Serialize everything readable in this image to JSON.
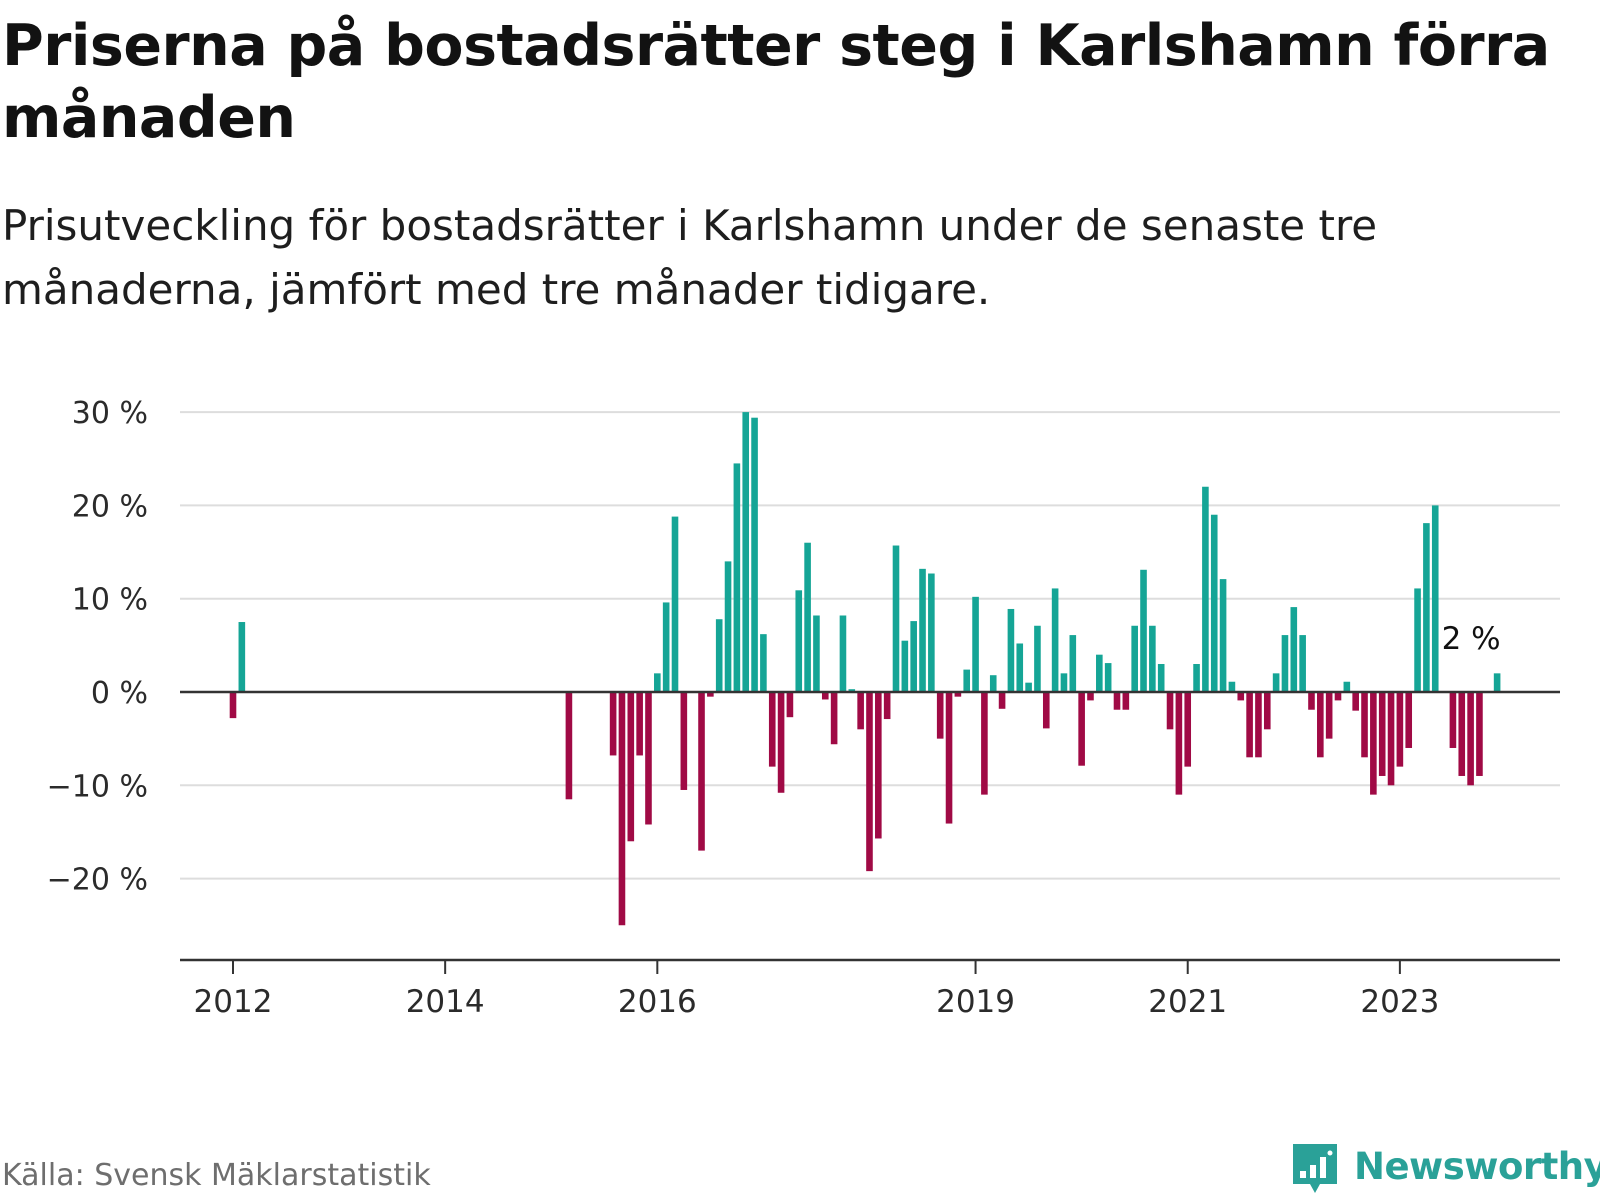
{
  "header": {
    "title": "Priserna på bostadsrätter steg i Karlshamn förra månaden",
    "subtitle": "Prisutveckling för bostadsrätter i Karlshamn under de senaste tre månaderna, jämfört med tre månader tidigare."
  },
  "footer": {
    "source": "Källa: Svensk Mäklarstatistik",
    "brand": "Newsworthy",
    "brand_icon": "bar-chart-bubble-icon"
  },
  "colors": {
    "positive": "#15a596",
    "negative": "#a00a45",
    "grid": "#dddddd",
    "axis": "#333333",
    "brand": "#2aa198"
  },
  "chart_data": {
    "type": "bar",
    "title": "Priserna på bostadsrätter steg i Karlshamn förra månaden",
    "subtitle": "Prisutveckling för bostadsrätter i Karlshamn under de senaste tre månaderna, jämfört med tre månader tidigare.",
    "xlabel": "",
    "ylabel": "",
    "ylim": [
      -28,
      30
    ],
    "yticks": [
      30,
      20,
      10,
      0,
      -10,
      -20
    ],
    "ytick_labels": [
      "30 %",
      "20 %",
      "10 %",
      "0 %",
      "−10 %",
      "−20 %"
    ],
    "xticks": [
      "2012",
      "2014",
      "2016",
      "2019",
      "2021",
      "2023"
    ],
    "grid": true,
    "annotation": {
      "text": "2 %",
      "date": "2023-12"
    },
    "series": [
      {
        "values": [
          {
            "date": "2012-01",
            "value": -2.8
          },
          {
            "date": "2012-02",
            "value": 7.5
          },
          {
            "date": "2015-03",
            "value": -11.5
          },
          {
            "date": "2015-08",
            "value": -6.8
          },
          {
            "date": "2015-09",
            "value": -25.0
          },
          {
            "date": "2015-10",
            "value": -16.0
          },
          {
            "date": "2015-11",
            "value": -6.8
          },
          {
            "date": "2015-12",
            "value": -14.2
          },
          {
            "date": "2016-01",
            "value": 2.0
          },
          {
            "date": "2016-02",
            "value": 9.6
          },
          {
            "date": "2016-03",
            "value": 18.8
          },
          {
            "date": "2016-04",
            "value": -10.5
          },
          {
            "date": "2016-06",
            "value": -17.0
          },
          {
            "date": "2016-07",
            "value": -0.5
          },
          {
            "date": "2016-08",
            "value": 7.8
          },
          {
            "date": "2016-09",
            "value": 14.0
          },
          {
            "date": "2016-10",
            "value": 24.5
          },
          {
            "date": "2016-11",
            "value": 30.0
          },
          {
            "date": "2016-12",
            "value": 29.4
          },
          {
            "date": "2017-01",
            "value": 6.2
          },
          {
            "date": "2017-02",
            "value": -8.0
          },
          {
            "date": "2017-03",
            "value": -10.8
          },
          {
            "date": "2017-04",
            "value": -2.7
          },
          {
            "date": "2017-05",
            "value": 10.9
          },
          {
            "date": "2017-06",
            "value": 16.0
          },
          {
            "date": "2017-07",
            "value": 8.2
          },
          {
            "date": "2017-08",
            "value": -0.8
          },
          {
            "date": "2017-09",
            "value": -5.6
          },
          {
            "date": "2017-10",
            "value": 8.2
          },
          {
            "date": "2017-11",
            "value": 0.3
          },
          {
            "date": "2017-12",
            "value": -4.0
          },
          {
            "date": "2018-01",
            "value": -19.2
          },
          {
            "date": "2018-02",
            "value": -15.7
          },
          {
            "date": "2018-03",
            "value": -2.9
          },
          {
            "date": "2018-04",
            "value": 15.7
          },
          {
            "date": "2018-05",
            "value": 5.5
          },
          {
            "date": "2018-06",
            "value": 7.6
          },
          {
            "date": "2018-07",
            "value": 13.2
          },
          {
            "date": "2018-08",
            "value": 12.7
          },
          {
            "date": "2018-09",
            "value": -5.0
          },
          {
            "date": "2018-10",
            "value": -14.1
          },
          {
            "date": "2018-11",
            "value": -0.5
          },
          {
            "date": "2018-12",
            "value": 2.4
          },
          {
            "date": "2019-01",
            "value": 10.2
          },
          {
            "date": "2019-02",
            "value": -11.0
          },
          {
            "date": "2019-03",
            "value": 1.8
          },
          {
            "date": "2019-04",
            "value": -1.8
          },
          {
            "date": "2019-05",
            "value": 8.9
          },
          {
            "date": "2019-06",
            "value": 5.2
          },
          {
            "date": "2019-07",
            "value": 1.0
          },
          {
            "date": "2019-08",
            "value": 7.1
          },
          {
            "date": "2019-09",
            "value": -3.9
          },
          {
            "date": "2019-10",
            "value": 11.1
          },
          {
            "date": "2019-11",
            "value": 2.0
          },
          {
            "date": "2019-12",
            "value": 6.1
          },
          {
            "date": "2020-01",
            "value": -7.9
          },
          {
            "date": "2020-02",
            "value": -0.9
          },
          {
            "date": "2020-03",
            "value": 4.0
          },
          {
            "date": "2020-04",
            "value": 3.1
          },
          {
            "date": "2020-05",
            "value": -1.9
          },
          {
            "date": "2020-06",
            "value": -1.9
          },
          {
            "date": "2020-07",
            "value": 7.1
          },
          {
            "date": "2020-08",
            "value": 13.1
          },
          {
            "date": "2020-09",
            "value": 7.1
          },
          {
            "date": "2020-10",
            "value": 3.0
          },
          {
            "date": "2020-11",
            "value": -4.0
          },
          {
            "date": "2020-12",
            "value": -11.0
          },
          {
            "date": "2021-01",
            "value": -8.0
          },
          {
            "date": "2021-02",
            "value": 3.0
          },
          {
            "date": "2021-03",
            "value": 22.0
          },
          {
            "date": "2021-04",
            "value": 19.0
          },
          {
            "date": "2021-05",
            "value": 12.1
          },
          {
            "date": "2021-06",
            "value": 1.1
          },
          {
            "date": "2021-07",
            "value": -0.9
          },
          {
            "date": "2021-08",
            "value": -7.0
          },
          {
            "date": "2021-09",
            "value": -7.0
          },
          {
            "date": "2021-10",
            "value": -4.0
          },
          {
            "date": "2021-11",
            "value": 2.0
          },
          {
            "date": "2021-12",
            "value": 6.1
          },
          {
            "date": "2022-01",
            "value": 9.1
          },
          {
            "date": "2022-02",
            "value": 6.1
          },
          {
            "date": "2022-03",
            "value": -1.9
          },
          {
            "date": "2022-04",
            "value": -7.0
          },
          {
            "date": "2022-05",
            "value": -5.0
          },
          {
            "date": "2022-06",
            "value": -0.9
          },
          {
            "date": "2022-07",
            "value": 1.1
          },
          {
            "date": "2022-08",
            "value": -2.0
          },
          {
            "date": "2022-09",
            "value": -7.0
          },
          {
            "date": "2022-10",
            "value": -11.0
          },
          {
            "date": "2022-11",
            "value": -9.0
          },
          {
            "date": "2022-12",
            "value": -10.0
          },
          {
            "date": "2023-01",
            "value": -8.0
          },
          {
            "date": "2023-02",
            "value": -6.0
          },
          {
            "date": "2023-03",
            "value": 11.1
          },
          {
            "date": "2023-04",
            "value": 18.1
          },
          {
            "date": "2023-05",
            "value": 20.0
          },
          {
            "date": "2023-07",
            "value": -6.0
          },
          {
            "date": "2023-08",
            "value": -9.0
          },
          {
            "date": "2023-09",
            "value": -10.0
          },
          {
            "date": "2023-10",
            "value": -9.0
          },
          {
            "date": "2023-12",
            "value": 2.0
          }
        ]
      }
    ]
  }
}
